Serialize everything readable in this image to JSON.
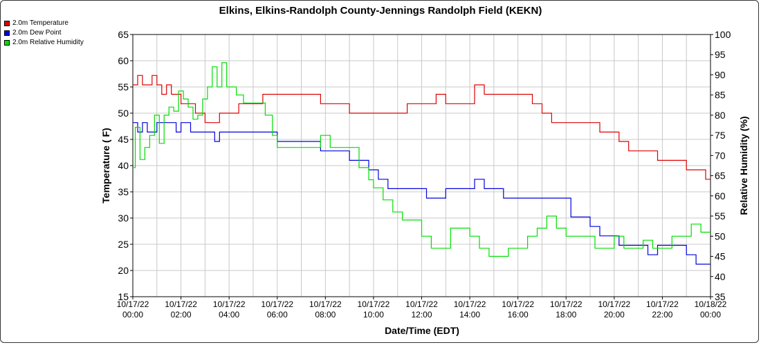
{
  "chart_data": {
    "type": "line",
    "title": "Elkins, Elkins-Randolph County-Jennings Randolph Field (KEKN)",
    "xlabel": "Date/Time (EDT)",
    "ylabel": "Temperature ( F)",
    "y2label": "Relative Humidity (%)",
    "ylim": [
      15,
      65
    ],
    "y2lim": [
      35,
      100
    ],
    "yticks": [
      15,
      20,
      25,
      30,
      35,
      40,
      45,
      50,
      55,
      60,
      65
    ],
    "y2ticks": [
      35,
      40,
      45,
      50,
      55,
      60,
      65,
      70,
      75,
      80,
      85,
      90,
      95,
      100
    ],
    "x_tick_hours": [
      0,
      2,
      4,
      6,
      8,
      10,
      12,
      14,
      16,
      18,
      20,
      22,
      24
    ],
    "x_tick_labels": [
      [
        "10/17/22",
        "00:00"
      ],
      [
        "10/17/22",
        "02:00"
      ],
      [
        "10/17/22",
        "04:00"
      ],
      [
        "10/17/22",
        "06:00"
      ],
      [
        "10/17/22",
        "08:00"
      ],
      [
        "10/17/22",
        "10:00"
      ],
      [
        "10/17/22",
        "12:00"
      ],
      [
        "10/17/22",
        "14:00"
      ],
      [
        "10/17/22",
        "16:00"
      ],
      [
        "10/17/22",
        "18:00"
      ],
      [
        "10/17/22",
        "20:00"
      ],
      [
        "10/17/22",
        "22:00"
      ],
      [
        "10/18/22",
        "00:00"
      ]
    ],
    "grid": true,
    "legend_position": "top-left",
    "series": [
      {
        "name": "2.0m Temperature",
        "color": "#dd0000",
        "axis": "left",
        "x_hours": [
          0,
          0.2,
          0.4,
          0.6,
          0.8,
          1.0,
          1.2,
          1.4,
          1.6,
          1.8,
          2.0,
          2.2,
          2.4,
          2.6,
          2.8,
          3.0,
          3.2,
          3.4,
          3.6,
          3.8,
          4.0,
          4.2,
          4.4,
          4.6,
          4.8,
          5.0,
          5.2,
          5.4,
          5.6,
          5.8,
          6.0,
          6.5,
          7.0,
          7.4,
          7.8,
          8.2,
          8.6,
          9.0,
          9.4,
          9.8,
          10.2,
          10.6,
          11.0,
          11.4,
          11.8,
          12.2,
          12.6,
          13.0,
          13.4,
          13.8,
          14.2,
          14.6,
          15.0,
          15.4,
          15.8,
          16.2,
          16.6,
          17.0,
          17.4,
          17.8,
          18.2,
          18.6,
          19.0,
          19.4,
          19.8,
          20.2,
          20.6,
          21.0,
          21.4,
          21.8,
          22.2,
          22.6,
          23.0,
          23.4,
          23.8,
          24.0
        ],
        "values": [
          55.4,
          57.2,
          55.4,
          55.4,
          57.2,
          55.4,
          53.6,
          55.4,
          53.6,
          53.6,
          51.8,
          51.8,
          51.8,
          50.0,
          50.0,
          48.2,
          48.2,
          48.2,
          50.0,
          50.0,
          50.0,
          50.0,
          51.8,
          51.8,
          51.8,
          51.8,
          51.8,
          53.6,
          53.6,
          53.6,
          53.6,
          53.6,
          53.6,
          53.6,
          51.8,
          51.8,
          51.8,
          50.0,
          50.0,
          50.0,
          50.0,
          50.0,
          50.0,
          51.8,
          51.8,
          51.8,
          53.6,
          51.8,
          51.8,
          51.8,
          55.4,
          53.6,
          53.6,
          53.6,
          53.6,
          53.6,
          51.8,
          50.0,
          48.2,
          48.2,
          48.2,
          48.2,
          48.2,
          46.4,
          46.4,
          44.6,
          42.8,
          42.8,
          42.8,
          41.0,
          41.0,
          41.0,
          39.2,
          39.2,
          37.4,
          37.4
        ]
      },
      {
        "name": "2.0m Dew Point",
        "color": "#0000dd",
        "axis": "left",
        "x_hours": [
          0,
          0.2,
          0.4,
          0.6,
          0.8,
          1.0,
          1.2,
          1.4,
          1.6,
          1.8,
          2.0,
          2.2,
          2.4,
          2.6,
          2.8,
          3.0,
          3.2,
          3.4,
          3.6,
          3.8,
          4.0,
          4.4,
          4.8,
          5.2,
          5.6,
          6.0,
          6.5,
          7.0,
          7.4,
          7.8,
          8.2,
          8.6,
          9.0,
          9.4,
          9.8,
          10.2,
          10.6,
          11.0,
          11.4,
          11.8,
          12.2,
          12.6,
          13.0,
          13.4,
          13.8,
          14.2,
          14.6,
          15.0,
          15.4,
          15.8,
          16.2,
          16.6,
          17.0,
          17.4,
          17.8,
          18.2,
          18.6,
          19.0,
          19.4,
          19.8,
          20.2,
          20.6,
          21.0,
          21.4,
          21.8,
          22.2,
          22.6,
          23.0,
          23.4,
          23.8,
          24.0
        ],
        "values": [
          48.2,
          46.4,
          48.2,
          46.4,
          46.4,
          48.2,
          48.2,
          48.2,
          48.2,
          46.4,
          48.2,
          48.2,
          46.4,
          46.4,
          46.4,
          46.4,
          46.4,
          44.6,
          46.4,
          46.4,
          46.4,
          46.4,
          46.4,
          46.4,
          46.4,
          44.6,
          44.6,
          44.6,
          44.6,
          42.8,
          42.8,
          42.8,
          41.0,
          41.0,
          39.2,
          37.4,
          35.6,
          35.6,
          35.6,
          35.6,
          33.8,
          33.8,
          35.6,
          35.6,
          35.6,
          37.4,
          35.6,
          35.6,
          33.8,
          33.8,
          33.8,
          33.8,
          33.8,
          33.8,
          33.8,
          30.2,
          30.2,
          28.4,
          26.6,
          26.6,
          24.8,
          24.8,
          24.8,
          23.0,
          24.8,
          24.8,
          24.8,
          23.0,
          21.2,
          21.2,
          21.2
        ]
      },
      {
        "name": "2.0m Relative Humidity",
        "color": "#00dd00",
        "axis": "right",
        "x_hours": [
          0,
          0.1,
          0.3,
          0.5,
          0.7,
          0.9,
          1.1,
          1.3,
          1.5,
          1.7,
          1.9,
          2.1,
          2.3,
          2.5,
          2.7,
          2.9,
          3.1,
          3.3,
          3.5,
          3.7,
          3.9,
          4.1,
          4.3,
          4.6,
          4.9,
          5.2,
          5.5,
          5.8,
          6.0,
          6.5,
          7.0,
          7.4,
          7.8,
          8.2,
          8.6,
          9.0,
          9.4,
          9.8,
          10.0,
          10.4,
          10.8,
          11.2,
          11.6,
          12.0,
          12.4,
          12.8,
          13.2,
          13.6,
          14.0,
          14.4,
          14.8,
          15.2,
          15.6,
          16.0,
          16.4,
          16.8,
          17.2,
          17.6,
          18.0,
          18.4,
          18.8,
          19.2,
          19.6,
          20.0,
          20.4,
          20.8,
          21.2,
          21.6,
          22.0,
          22.4,
          22.8,
          23.2,
          23.6,
          24.0
        ],
        "values": [
          67,
          77,
          69,
          72,
          75,
          80,
          73,
          80,
          82,
          81,
          86,
          84,
          82,
          79,
          80,
          84,
          87,
          92,
          87,
          93,
          87,
          87,
          85,
          83,
          83,
          83,
          80,
          75,
          72,
          72,
          72,
          72,
          75,
          72,
          72,
          72,
          67,
          64,
          62,
          59,
          56,
          54,
          54,
          50,
          47,
          47,
          52,
          52,
          50,
          47,
          45,
          45,
          47,
          47,
          50,
          52,
          55,
          52,
          50,
          50,
          50,
          47,
          47,
          50,
          47,
          47,
          49,
          47,
          47,
          50,
          50,
          53,
          51,
          51
        ]
      }
    ]
  }
}
